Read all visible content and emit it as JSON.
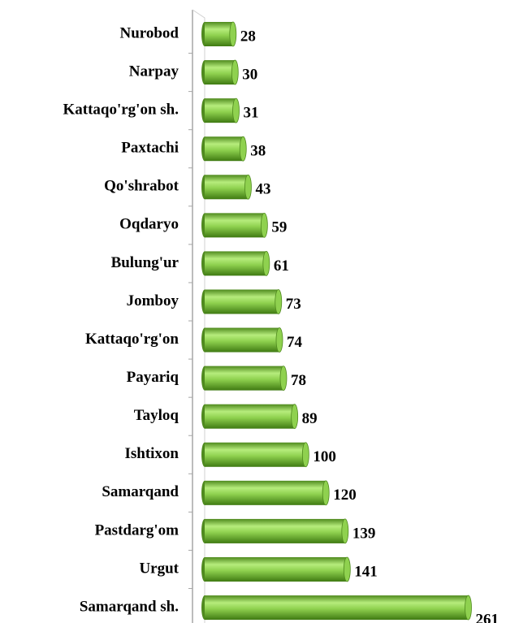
{
  "chart_data": {
    "type": "bar",
    "orientation": "horizontal",
    "categories": [
      "Nurobod",
      "Narpay",
      "Kattaqo'rg'on sh.",
      "Paxtachi",
      "Qo'shrabot",
      "Oqdaryo",
      "Bulung'ur",
      "Jomboy",
      "Kattaqo'rg'on",
      "Payariq",
      "Tayloq",
      "Ishtixon",
      "Samarqand",
      "Pastdarg'om",
      "Urgut",
      "Samarqand sh."
    ],
    "values": [
      28,
      30,
      31,
      38,
      43,
      59,
      61,
      73,
      74,
      78,
      89,
      100,
      120,
      139,
      141,
      261
    ],
    "color": "#8fd14f",
    "xlim": [
      0,
      300
    ]
  }
}
